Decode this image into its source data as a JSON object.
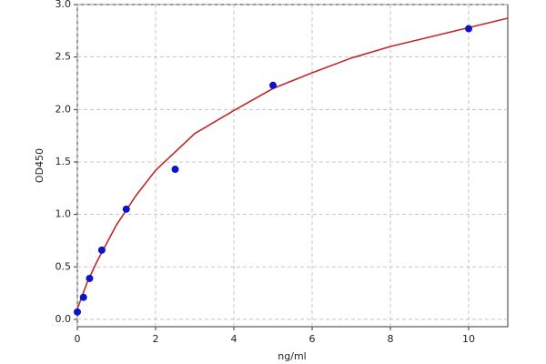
{
  "chart_data": {
    "type": "scatter",
    "x_label": "ng/ml",
    "y_label": "OD450",
    "xlim": [
      0,
      11
    ],
    "ylim": [
      -0.07,
      3.0
    ],
    "xticks": [
      0,
      2,
      4,
      6,
      8,
      10
    ],
    "yticks": [
      {
        "value": 0,
        "label": "0.0"
      },
      0.5,
      {
        "value": 1,
        "label": "1.0"
      },
      1.5,
      {
        "value": 2,
        "label": "2.0"
      },
      2.5,
      {
        "value": 3,
        "label": "3.0"
      }
    ],
    "grid": true,
    "series": [
      {
        "style": "line",
        "color": "#c0282a",
        "x": [
          0,
          0.25,
          0.5,
          1,
          1.5,
          2,
          3,
          4,
          5,
          6,
          7,
          8,
          9,
          10,
          11
        ],
        "values": [
          0.1,
          0.35,
          0.55,
          0.9,
          1.18,
          1.42,
          1.77,
          1.99,
          2.2,
          2.35,
          2.49,
          2.6,
          2.69,
          2.78,
          2.87
        ]
      },
      {
        "style": "points",
        "color": "#0a14c8",
        "x": [
          0,
          0.156,
          0.3125,
          0.625,
          1.25,
          2.5,
          5,
          10
        ],
        "values": [
          0.07,
          0.21,
          0.39,
          0.66,
          1.05,
          1.43,
          2.23,
          2.77
        ]
      }
    ]
  }
}
